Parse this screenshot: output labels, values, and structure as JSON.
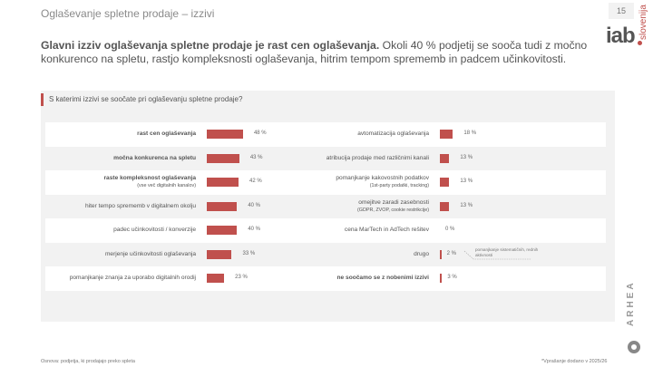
{
  "header": {
    "title": "Oglaševanje spletne prodaje – izzivi",
    "page_number": "15",
    "logo": "iab.slovenija",
    "logo_text": "iab",
    "logo_sub": "slovenija"
  },
  "lead": {
    "bold": "Glavni izziv oglaševanja spletne prodaje je rast cen oglaševanja.",
    "text": " Okoli 40 % podjetij se sooča tudi z močno konkurenco na spletu, rastjo kompleksnosti oglaševanja, hitrim tempom sprememb in padcem učinkovitosti."
  },
  "question": "S katerimi izzivi se soočate pri oglaševanju spletne prodaje?",
  "chart_data": {
    "type": "bar",
    "orientation": "horizontal",
    "bar_color": "#c0504d",
    "unit": "%",
    "left": [
      {
        "label": "rast cen oglaševanja",
        "sub": "",
        "value": 48,
        "display": "48 %",
        "bold": true
      },
      {
        "label": "močna konkurenca na spletu",
        "sub": "",
        "value": 43,
        "display": "43 %",
        "bold": true
      },
      {
        "label": "raste kompleksnost oglaševanja",
        "sub": "(vse več digitalnih kanalov)",
        "value": 42,
        "display": "42 %",
        "bold": true
      },
      {
        "label": "hiter tempo sprememb v digitalnem okolju",
        "sub": "",
        "value": 40,
        "display": "40 %",
        "bold": false
      },
      {
        "label": "padec učinkovitosti / konverzije",
        "sub": "",
        "value": 40,
        "display": "40 %",
        "bold": false
      },
      {
        "label": "merjenje učinkovitosti oglaševanja",
        "sub": "",
        "value": 33,
        "display": "33 %",
        "bold": false
      },
      {
        "label": "pomanjkanje znanja za uporabo digitalnih orodij",
        "sub": "",
        "value": 23,
        "display": "23 %",
        "bold": false
      }
    ],
    "right": [
      {
        "label": "avtomatizacija oglaševanja",
        "sub": "",
        "value": 18,
        "display": "18 %",
        "bold": false
      },
      {
        "label": "atribucija prodaje med različnimi kanali",
        "sub": "",
        "value": 13,
        "display": "13 %",
        "bold": false
      },
      {
        "label": "pomanjkanje kakovostnih podatkov",
        "sub": "(1st-party podatki, tracking)",
        "value": 13,
        "display": "13 %",
        "bold": false
      },
      {
        "label": "omejitve zaradi zasebnosti",
        "sub": "(GDPR, ZVOP, cookie restrikcije)",
        "value": 13,
        "display": "13 %",
        "bold": false
      },
      {
        "label": "cena MarTech in AdTech rešitev",
        "sub": "",
        "value": 0,
        "display": "0 %",
        "bold": false
      },
      {
        "label": "drugo",
        "sub": "",
        "value": 2,
        "display": "2 %",
        "bold": false
      },
      {
        "label": "ne soočamo se z nobenimi izzivi",
        "sub": "",
        "value": 3,
        "display": "3 %",
        "bold": true
      }
    ],
    "annotation": "pomanjkanje sistematičnih, rednih aktivnosti"
  },
  "footer": {
    "basis": "Osnova: podjetja, ki prodajajo preko spleta",
    "note": "*Vprašanje dodano v 2025/26",
    "brand": "ARHEA"
  }
}
